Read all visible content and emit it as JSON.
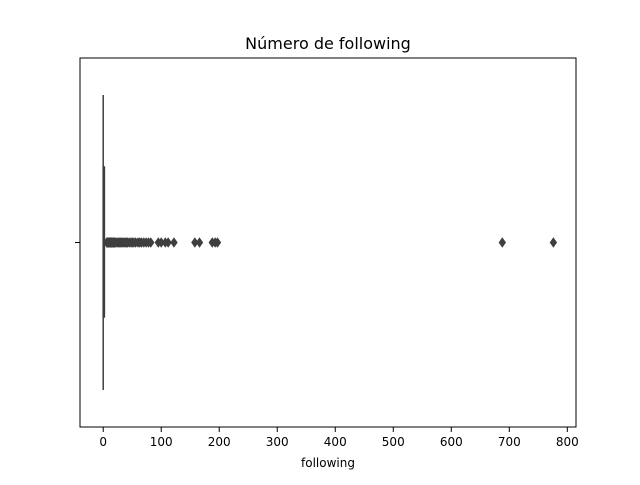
{
  "chart_data": {
    "type": "boxplot",
    "title": "Número de following",
    "xlabel": "following",
    "ylabel": "",
    "xlim": [
      -40,
      815
    ],
    "xticks": [
      0,
      100,
      200,
      300,
      400,
      500,
      600,
      700,
      800
    ],
    "xtick_labels": [
      "0",
      "100",
      "200",
      "300",
      "400",
      "500",
      "600",
      "700",
      "800"
    ],
    "grid": false,
    "box_color": "#3a5a9c",
    "line_color": "#3f3f3f",
    "box": {
      "q1": 0,
      "median": 1,
      "q3": 2,
      "whisker_low": 0,
      "whisker_high": 5
    },
    "outliers": [
      6,
      7,
      8,
      9,
      10,
      11,
      12,
      13,
      14,
      15,
      16,
      17,
      18,
      19,
      20,
      22,
      24,
      26,
      28,
      30,
      32,
      34,
      36,
      38,
      40,
      42,
      45,
      48,
      50,
      53,
      56,
      60,
      63,
      66,
      70,
      74,
      78,
      82,
      95,
      100,
      107,
      112,
      122,
      158,
      166,
      188,
      193,
      197,
      688,
      776
    ]
  }
}
